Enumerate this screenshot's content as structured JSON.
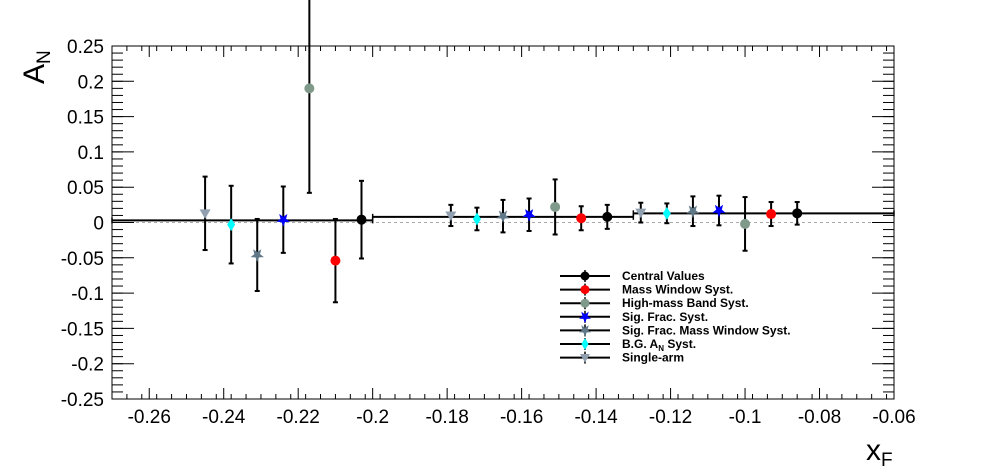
{
  "chart_data": {
    "type": "scatter",
    "xlabel": "x",
    "xlabel_sub": "F",
    "ylabel": "A",
    "ylabel_sub": "N",
    "xlim": [
      -0.27,
      -0.06
    ],
    "ylim": [
      -0.25,
      0.25
    ],
    "xticks": [
      "-0.26",
      "-0.24",
      "-0.22",
      "-0.2",
      "-0.18",
      "-0.16",
      "-0.14",
      "-0.12",
      "-0.1",
      "-0.08",
      "-0.06"
    ],
    "yticks": [
      "0.25",
      "0.2",
      "0.15",
      "0.1",
      "0.05",
      "0",
      "-0.05",
      "-0.1",
      "-0.15",
      "-0.2",
      "-0.25"
    ],
    "grid": false,
    "zero_line": "dashed",
    "legend_position": "lower-right",
    "bins": [
      {
        "x_low": -0.27,
        "x_high": -0.2,
        "y": 0.003
      },
      {
        "x_low": -0.2,
        "x_high": -0.13,
        "y": 0.008
      },
      {
        "x_low": -0.13,
        "x_high": -0.06,
        "y": 0.013
      }
    ],
    "series": [
      {
        "name": "Central Values",
        "color": "#000000",
        "marker": "circle",
        "points": [
          {
            "x": -0.203,
            "y": 0.004,
            "err": 0.055
          },
          {
            "x": -0.137,
            "y": 0.008,
            "err": 0.017
          },
          {
            "x": -0.086,
            "y": 0.013,
            "err": 0.016
          }
        ]
      },
      {
        "name": "Mass Window Syst.",
        "color": "#ff0000",
        "marker": "circle",
        "points": [
          {
            "x": -0.21,
            "y": -0.054,
            "err": 0.059
          },
          {
            "x": -0.144,
            "y": 0.006,
            "err": 0.017
          },
          {
            "x": -0.093,
            "y": 0.012,
            "err": 0.017
          }
        ]
      },
      {
        "name": "High-mass Band Syst.",
        "color": "#7f9a8a",
        "marker": "circle",
        "points": [
          {
            "x": -0.217,
            "y": 0.19,
            "err": 0.148
          },
          {
            "x": -0.151,
            "y": 0.022,
            "err": 0.039
          },
          {
            "x": -0.1,
            "y": -0.002,
            "err": 0.038
          }
        ]
      },
      {
        "name": "Sig. Frac. Syst.",
        "color": "#0000ff",
        "marker": "star",
        "points": [
          {
            "x": -0.224,
            "y": 0.004,
            "err": 0.047
          },
          {
            "x": -0.158,
            "y": 0.011,
            "err": 0.023
          },
          {
            "x": -0.107,
            "y": 0.017,
            "err": 0.021
          }
        ]
      },
      {
        "name": "Sig. Frac. Mass Window Syst.",
        "color": "#607888",
        "marker": "star",
        "points": [
          {
            "x": -0.231,
            "y": -0.046,
            "err": 0.051
          },
          {
            "x": -0.165,
            "y": 0.009,
            "err": 0.023
          },
          {
            "x": -0.114,
            "y": 0.016,
            "err": 0.021
          }
        ]
      },
      {
        "name": "B.G. A",
        "name_sub": "N",
        "name_suffix": " Syst.",
        "color": "#00ffff",
        "marker": "diamond",
        "points": [
          {
            "x": -0.238,
            "y": -0.003,
            "err": 0.055
          },
          {
            "x": -0.172,
            "y": 0.005,
            "err": 0.016
          },
          {
            "x": -0.121,
            "y": 0.013,
            "err": 0.014
          }
        ]
      },
      {
        "name": "Single-arm",
        "color": "#90a0b0",
        "marker": "triangle-down",
        "points": [
          {
            "x": -0.245,
            "y": 0.013,
            "err": 0.052
          },
          {
            "x": -0.179,
            "y": 0.01,
            "err": 0.015
          },
          {
            "x": -0.128,
            "y": 0.014,
            "err": 0.014
          }
        ]
      }
    ]
  }
}
